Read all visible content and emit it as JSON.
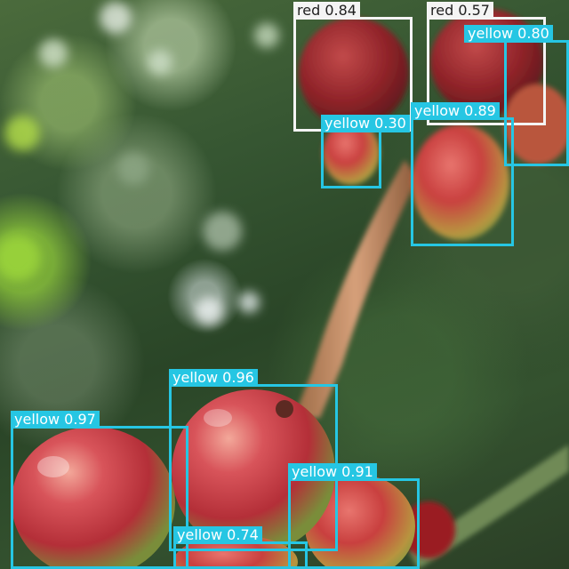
{
  "colors": {
    "yellow_box": "#26c6e3",
    "red_box": "#f4f4f4"
  },
  "detections": [
    {
      "label": "red",
      "confidence": "0.84"
    },
    {
      "label": "red",
      "confidence": "0.57"
    },
    {
      "label": "yellow",
      "confidence": "0.80"
    },
    {
      "label": "yellow",
      "confidence": "0.30"
    },
    {
      "label": "yellow",
      "confidence": "0.89"
    },
    {
      "label": "yellow",
      "confidence": "0.96"
    },
    {
      "label": "yellow",
      "confidence": "0.97"
    },
    {
      "label": "yellow",
      "confidence": "0.91"
    },
    {
      "label": "yellow",
      "confidence": "0.74"
    }
  ]
}
